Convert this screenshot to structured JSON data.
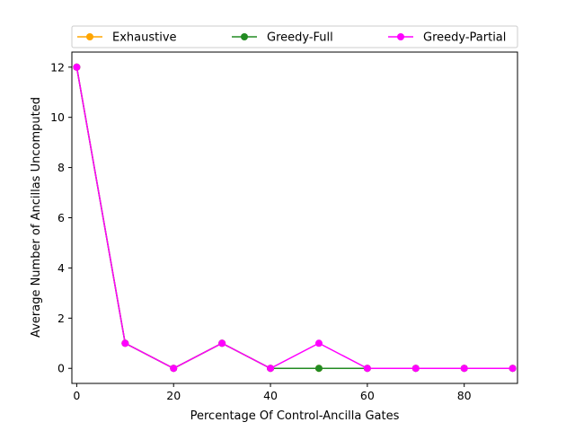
{
  "chart_data": {
    "type": "line",
    "xlabel": "Percentage Of Control-Ancilla Gates",
    "ylabel": "Average Number of Ancillas Uncomputed",
    "x": [
      0,
      10,
      20,
      30,
      40,
      50,
      60,
      70,
      80,
      90
    ],
    "xlim": [
      -1,
      91
    ],
    "ylim": [
      -0.6,
      12.6
    ],
    "xticks": [
      0,
      20,
      40,
      60,
      80
    ],
    "yticks": [
      0,
      2,
      4,
      6,
      8,
      10,
      12
    ],
    "grid": false,
    "legend_position": "top",
    "series": [
      {
        "name": "Exhaustive",
        "color": "#FFA500",
        "values": [
          12,
          1,
          0,
          1,
          0,
          0,
          0,
          0,
          0,
          0
        ]
      },
      {
        "name": "Greedy-Full",
        "color": "#228B22",
        "values": [
          12,
          1,
          0,
          1,
          0,
          0,
          0,
          0,
          0,
          0
        ]
      },
      {
        "name": "Greedy-Partial",
        "color": "#FF00FF",
        "values": [
          12,
          1,
          0,
          1,
          0,
          1,
          0,
          0,
          0,
          0
        ]
      }
    ]
  }
}
